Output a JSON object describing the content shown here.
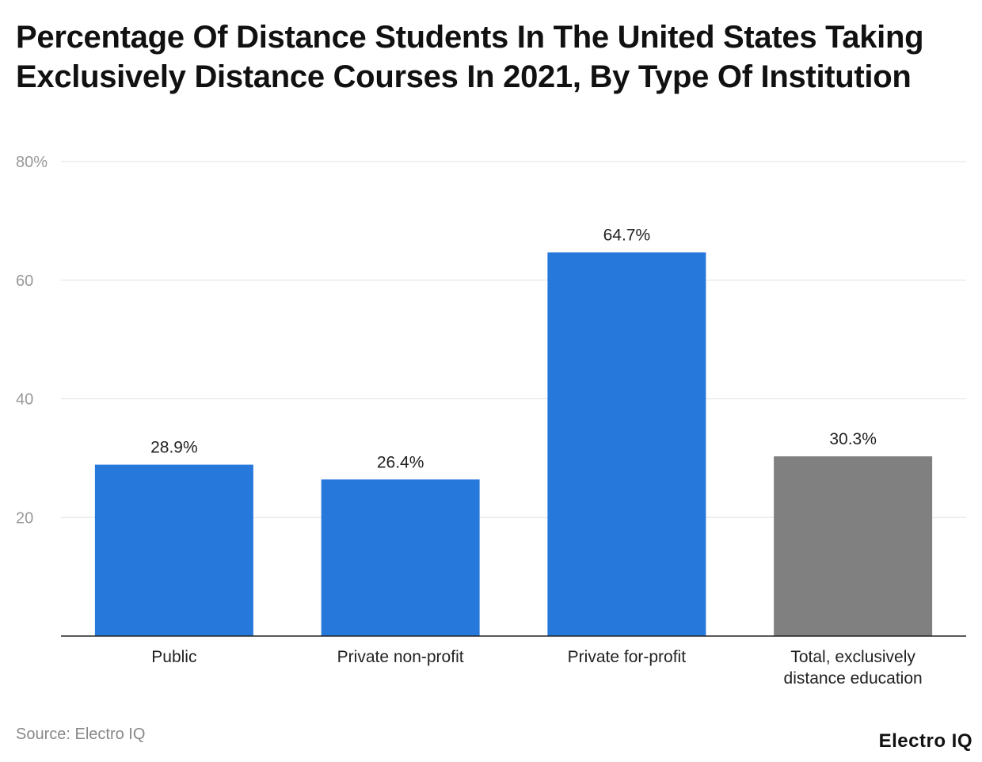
{
  "chart_data": {
    "type": "bar",
    "title": "Percentage Of Distance Students In The United States Taking Exclusively Distance Courses In 2021, By Type Of Institution",
    "categories": [
      "Public",
      "Private non-profit",
      "Private for-profit",
      "Total, exclusively distance education"
    ],
    "category_lines": [
      [
        "Public"
      ],
      [
        "Private non-profit"
      ],
      [
        "Private for-profit"
      ],
      [
        "Total, exclusively",
        "distance education"
      ]
    ],
    "values": [
      28.9,
      26.4,
      64.7,
      30.3
    ],
    "data_labels": [
      "28.9%",
      "26.4%",
      "64.7%",
      "30.3%"
    ],
    "bar_colors": [
      "#2778db",
      "#2778db",
      "#2778db",
      "#808080"
    ],
    "ylim": [
      0,
      80
    ],
    "yticks": [
      20,
      40,
      60,
      80
    ],
    "ytick_labels": [
      "20",
      "40",
      "60",
      "80%"
    ],
    "grid": true,
    "xlabel": "",
    "ylabel": ""
  },
  "source": "Source: Electro IQ",
  "logo": "Electro IQ"
}
